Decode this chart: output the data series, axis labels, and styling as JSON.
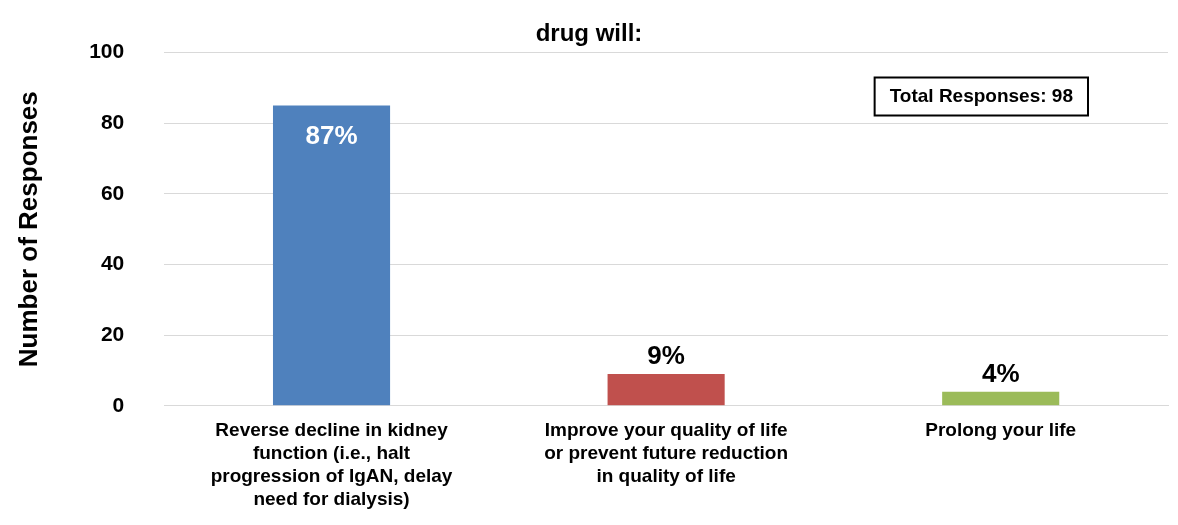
{
  "chart_data": {
    "type": "bar",
    "title": "drug will:",
    "ylabel": "Number of Responses",
    "categories": [
      "Reverse decline in kidney function (i.e., halt progression of IgAN, delay need for dialysis)",
      "Improve your quality of life or prevent future reduction in quality of life",
      "Prolong your life"
    ],
    "values": [
      85,
      9,
      4
    ],
    "colors": [
      "#4f81bd",
      "#c0504d",
      "#9bbb59"
    ],
    "ylim": [
      0,
      100
    ],
    "yticks": [
      0,
      20,
      40,
      60,
      80,
      100
    ],
    "grid": "y",
    "legend": false,
    "annotations": [
      "Total Responses: 98",
      {
        "text": "87%",
        "x": "Reverse decline in kidney function (i.e., halt progression of IgAN, delay need for dialysis)",
        "y": 85
      },
      {
        "text": "9%",
        "x": "Improve your quality of life or prevent future reduction in quality of life",
        "y": 9
      },
      {
        "text": "4%",
        "x": "Prolong your life",
        "y": 4
      }
    ]
  }
}
